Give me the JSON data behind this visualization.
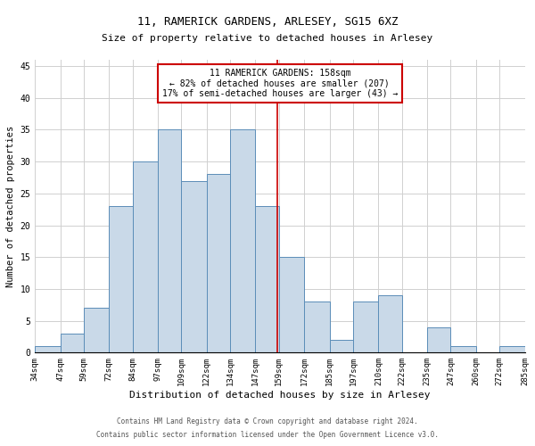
{
  "title1": "11, RAMERICK GARDENS, ARLESEY, SG15 6XZ",
  "title2": "Size of property relative to detached houses in Arlesey",
  "xlabel": "Distribution of detached houses by size in Arlesey",
  "ylabel": "Number of detached properties",
  "footnote1": "Contains HM Land Registry data © Crown copyright and database right 2024.",
  "footnote2": "Contains public sector information licensed under the Open Government Licence v3.0.",
  "bar_edges": [
    34,
    47,
    59,
    72,
    84,
    97,
    109,
    122,
    134,
    147,
    159,
    172,
    185,
    197,
    210,
    222,
    235,
    247,
    260,
    272,
    285
  ],
  "bar_values": [
    1,
    3,
    7,
    23,
    30,
    35,
    27,
    28,
    35,
    23,
    15,
    8,
    2,
    8,
    9,
    0,
    4,
    1,
    0,
    1
  ],
  "bar_color": "#c9d9e8",
  "bar_edge_color": "#5b8db8",
  "tick_labels": [
    "34sqm",
    "47sqm",
    "59sqm",
    "72sqm",
    "84sqm",
    "97sqm",
    "109sqm",
    "122sqm",
    "134sqm",
    "147sqm",
    "159sqm",
    "172sqm",
    "185sqm",
    "197sqm",
    "210sqm",
    "222sqm",
    "235sqm",
    "247sqm",
    "260sqm",
    "272sqm",
    "285sqm"
  ],
  "ylim": [
    0,
    46
  ],
  "yticks": [
    0,
    5,
    10,
    15,
    20,
    25,
    30,
    35,
    40,
    45
  ],
  "vline_x": 158,
  "vline_color": "#cc0000",
  "annotation_title": "11 RAMERICK GARDENS: 158sqm",
  "annotation_line1": "← 82% of detached houses are smaller (207)",
  "annotation_line2": "17% of semi-detached houses are larger (43) →",
  "annotation_box_color": "#ffffff",
  "annotation_border_color": "#cc0000",
  "grid_color": "#d0d0d0",
  "background_color": "#ffffff",
  "title1_fontsize": 9,
  "title2_fontsize": 8,
  "ylabel_fontsize": 7.5,
  "xlabel_fontsize": 8,
  "tick_fontsize": 6.5,
  "ytick_fontsize": 7,
  "annot_fontsize": 7,
  "footnote_fontsize": 5.5
}
